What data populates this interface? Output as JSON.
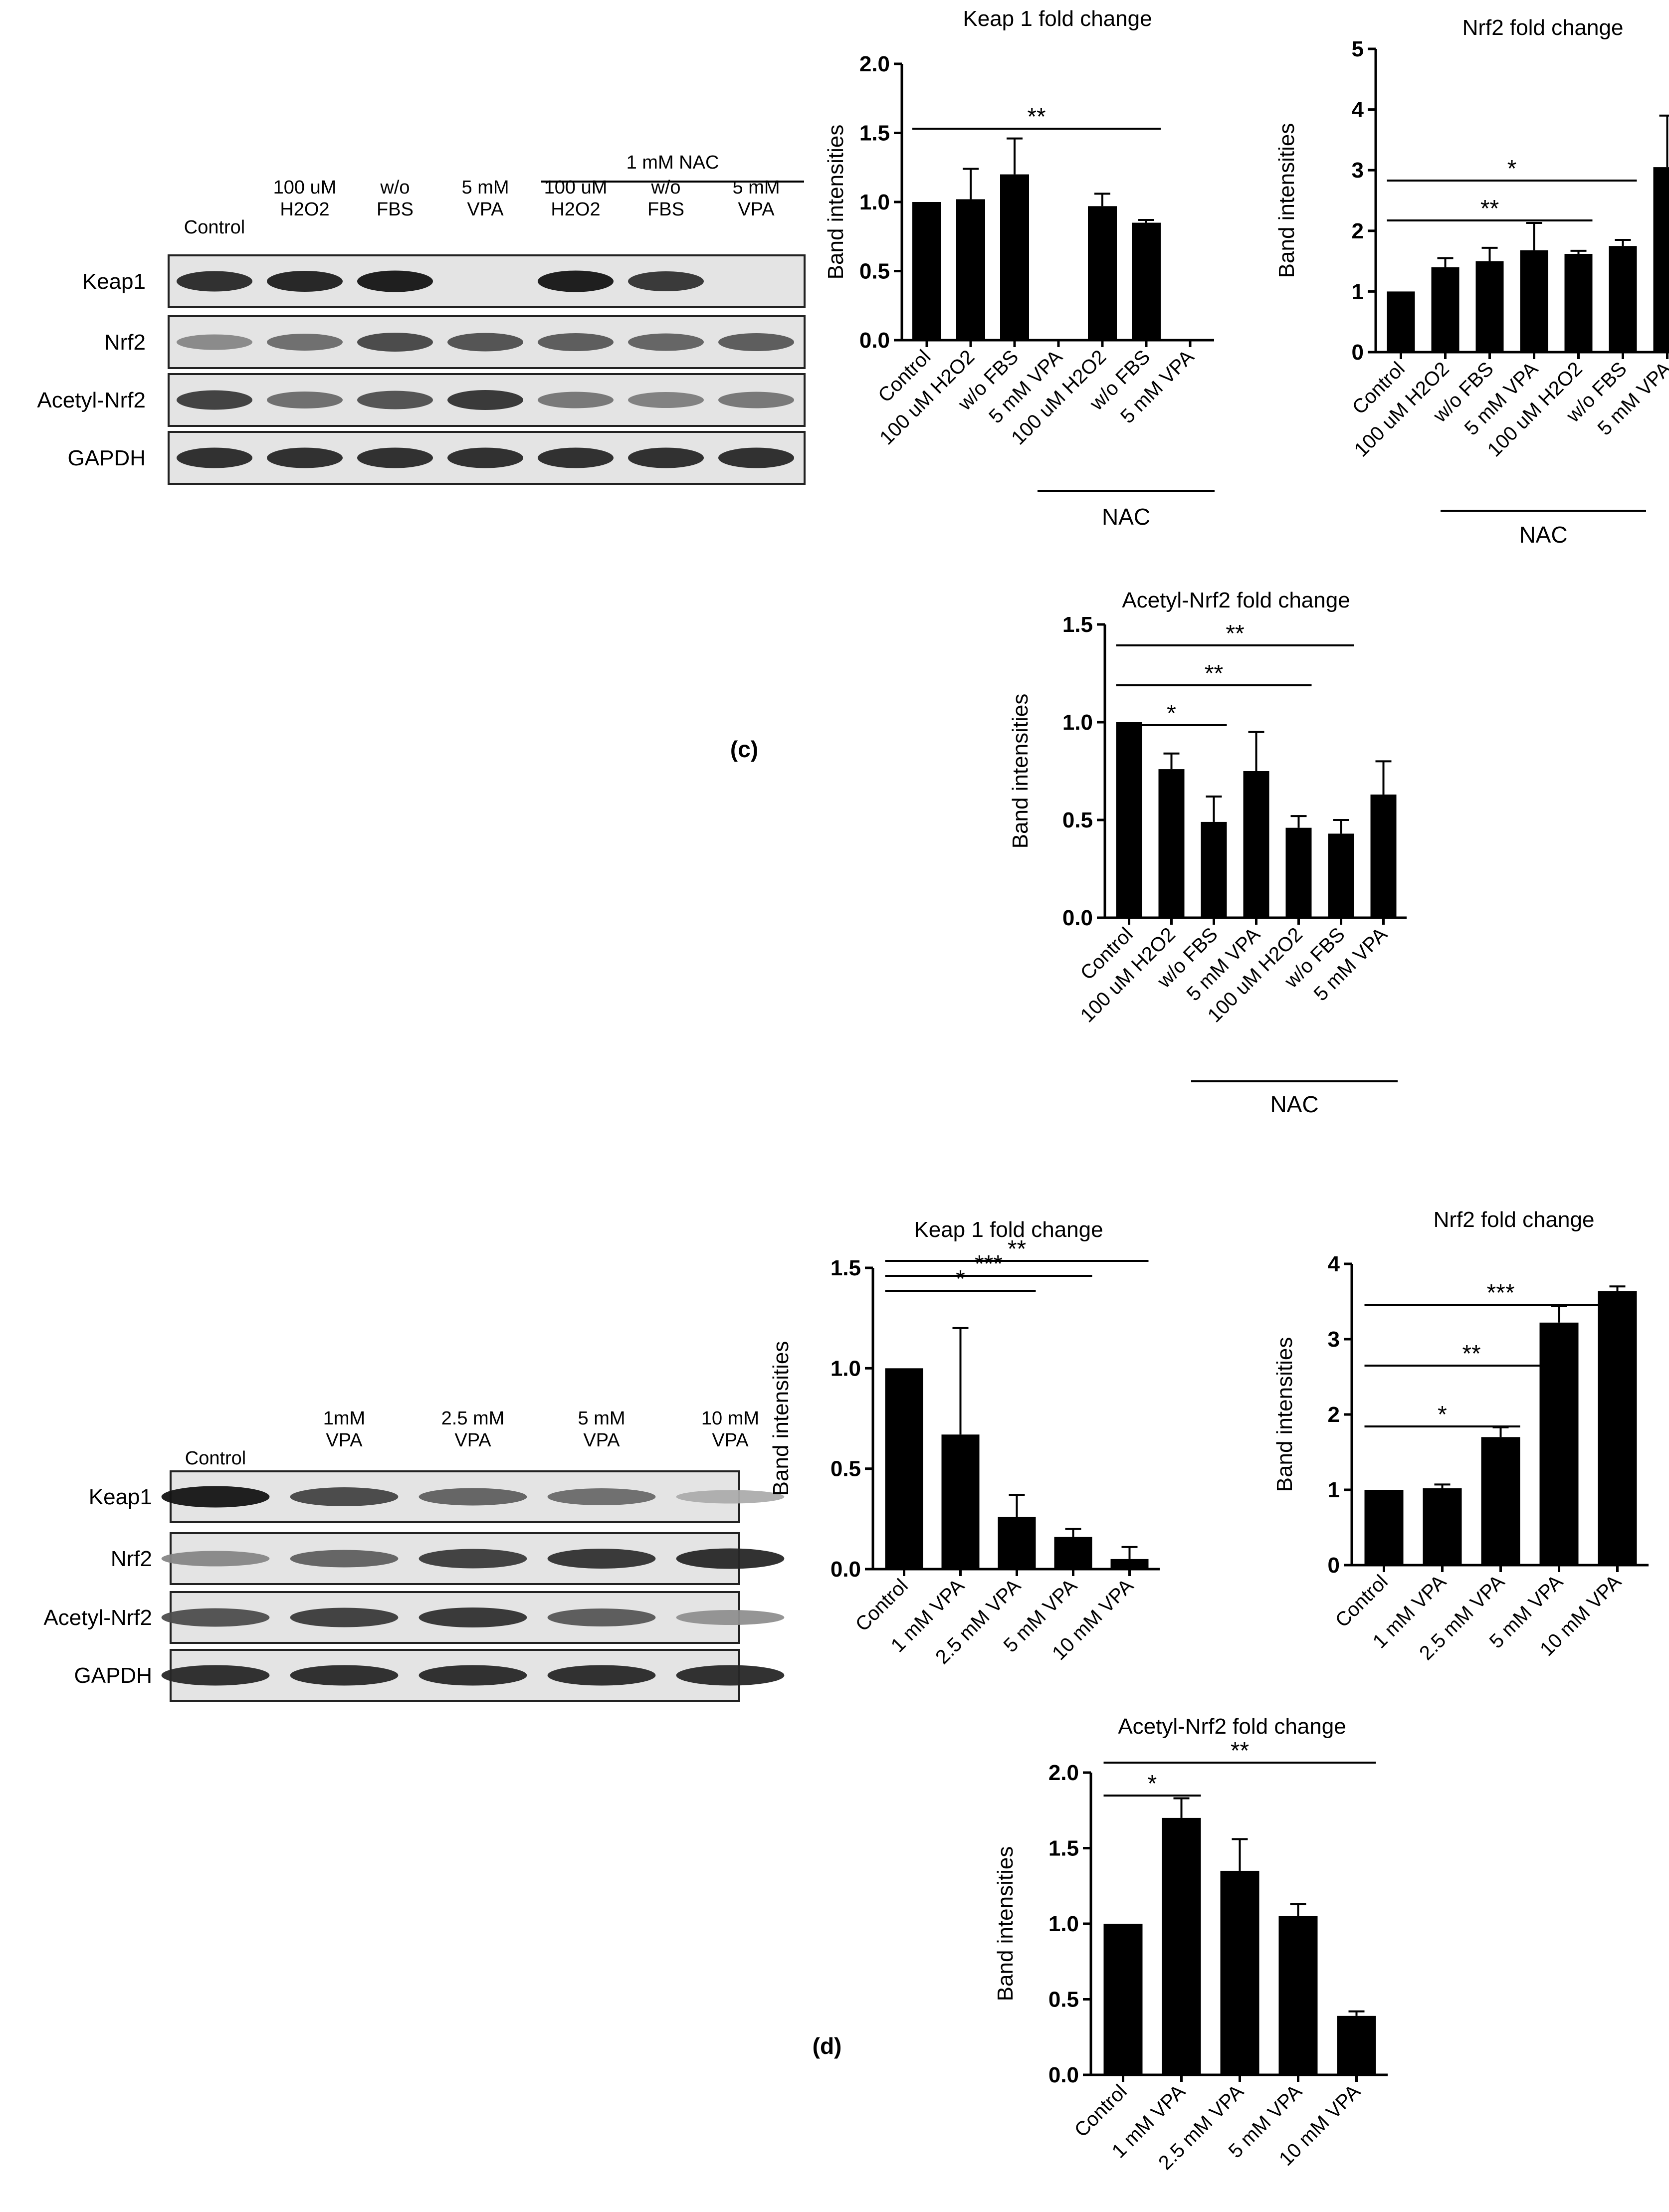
{
  "panels": {
    "c": {
      "label": "(c)"
    },
    "d": {
      "label": "(d)"
    }
  },
  "blots": [
    {
      "id": "blot-c",
      "header": "1 mM NAC",
      "lanes": [
        [
          "Control"
        ],
        [
          "100 uM",
          "H2O2"
        ],
        [
          "w/o",
          "FBS"
        ],
        [
          "5 mM",
          "VPA"
        ],
        [
          "100 uM",
          "H2O2"
        ],
        [
          "w/o",
          "FBS"
        ],
        [
          "5 mM",
          "VPA"
        ]
      ],
      "rows": [
        {
          "name": "Keap1",
          "intensity": [
            0.85,
            0.9,
            0.95,
            0.0,
            0.95,
            0.8,
            0.0
          ]
        },
        {
          "name": "Nrf2",
          "intensity": [
            0.35,
            0.5,
            0.7,
            0.65,
            0.6,
            0.55,
            0.6
          ]
        },
        {
          "name": "Acetyl-Nrf2",
          "intensity": [
            0.75,
            0.5,
            0.65,
            0.8,
            0.45,
            0.4,
            0.45
          ]
        },
        {
          "name": "GAPDH",
          "intensity": [
            0.85,
            0.85,
            0.85,
            0.85,
            0.85,
            0.85,
            0.85
          ]
        }
      ]
    },
    {
      "id": "blot-d",
      "header": "",
      "lanes": [
        [
          "Control"
        ],
        [
          "1mM",
          "VPA"
        ],
        [
          "2.5 mM",
          "VPA"
        ],
        [
          "5 mM",
          "VPA"
        ],
        [
          "10 mM",
          "VPA"
        ]
      ],
      "rows": [
        {
          "name": "Keap1",
          "intensity": [
            0.95,
            0.7,
            0.55,
            0.5,
            0.15
          ]
        },
        {
          "name": "Nrf2",
          "intensity": [
            0.35,
            0.55,
            0.75,
            0.8,
            0.85
          ]
        },
        {
          "name": "Acetyl-Nrf2",
          "intensity": [
            0.65,
            0.75,
            0.8,
            0.6,
            0.3
          ]
        },
        {
          "name": "GAPDH",
          "intensity": [
            0.85,
            0.85,
            0.85,
            0.85,
            0.85
          ]
        }
      ]
    }
  ],
  "chart_data": [
    {
      "id": "c-keap1",
      "type": "bar",
      "title": "Keap 1  fold change",
      "ylabel": "Band intensities",
      "ylim": [
        0,
        2.0
      ],
      "yticks": [
        "0.0",
        "0.5",
        "1.0",
        "1.5",
        "2.0"
      ],
      "categories": [
        "Control",
        "100 uM H2O2",
        "w/o FBS",
        "5 mM VPA",
        "100 uM H2O2",
        "w/o FBS",
        "5 mM VPA"
      ],
      "values": [
        1.0,
        1.02,
        1.2,
        0,
        0.97,
        0.85,
        0
      ],
      "errors": [
        0,
        0.22,
        0.26,
        0,
        0.09,
        0.02,
        0
      ],
      "group_label": "NAC",
      "group_from": 4,
      "group_to": 6,
      "significance": [
        {
          "from": 0,
          "to": 5,
          "label": "**"
        }
      ]
    },
    {
      "id": "c-nrf2",
      "type": "bar",
      "title": "Nrf2 fold change",
      "ylabel": "Band intensities",
      "ylim": [
        0,
        5
      ],
      "yticks": [
        "0",
        "1",
        "2",
        "3",
        "4",
        "5"
      ],
      "categories": [
        "Control",
        "100 uM H2O2",
        "w/o FBS",
        "5 mM VPA",
        "100 uM H2O2",
        "w/o FBS",
        "5 mM VPA"
      ],
      "values": [
        1.0,
        1.4,
        1.5,
        1.68,
        1.62,
        1.75,
        3.05
      ],
      "errors": [
        0,
        0.15,
        0.22,
        0.45,
        0.05,
        0.1,
        0.85
      ],
      "group_label": "NAC",
      "group_from": 4,
      "group_to": 6,
      "significance": [
        {
          "from": 0,
          "to": 4,
          "label": "**"
        },
        {
          "from": 0,
          "to": 5,
          "label": "*"
        }
      ]
    },
    {
      "id": "c-acetyl",
      "type": "bar",
      "title": "Acetyl-Nrf2  fold change",
      "ylabel": "Band intensities",
      "ylim": [
        0,
        1.5
      ],
      "yticks": [
        "0.0",
        "0.5",
        "1.0",
        "1.5"
      ],
      "categories": [
        "Control",
        "100 uM H2O2",
        "w/o FBS",
        "5 mM VPA",
        "100 uM H2O2",
        "w/o FBS",
        "5 mM VPA"
      ],
      "values": [
        1.0,
        0.76,
        0.49,
        0.75,
        0.46,
        0.43,
        0.63
      ],
      "errors": [
        0,
        0.08,
        0.13,
        0.2,
        0.06,
        0.07,
        0.17
      ],
      "group_label": "NAC",
      "group_from": 4,
      "group_to": 6,
      "significance": [
        {
          "from": 0,
          "to": 2,
          "label": "*"
        },
        {
          "from": 0,
          "to": 4,
          "label": "**"
        },
        {
          "from": 0,
          "to": 5,
          "label": "**"
        }
      ]
    },
    {
      "id": "d-keap1",
      "type": "bar",
      "title": "Keap 1  fold change",
      "ylabel": "Band intensities",
      "ylim": [
        0,
        1.5
      ],
      "yticks": [
        "0.0",
        "0.5",
        "1.0",
        "1.5"
      ],
      "categories": [
        "Control",
        "1 mM VPA",
        "2.5 mM VPA",
        "5 mM VPA",
        "10 mM VPA"
      ],
      "values": [
        1.0,
        0.67,
        0.26,
        0.16,
        0.05
      ],
      "errors": [
        0,
        0.53,
        0.11,
        0.04,
        0.06
      ],
      "group_label": "",
      "significance": [
        {
          "from": 0,
          "to": 2,
          "label": "*"
        },
        {
          "from": 0,
          "to": 3,
          "label": "***"
        },
        {
          "from": 0,
          "to": 4,
          "label": "**"
        }
      ]
    },
    {
      "id": "d-nrf2",
      "type": "bar",
      "title": "Nrf2 fold change",
      "ylabel": "Band intensities",
      "ylim": [
        0,
        4
      ],
      "yticks": [
        "0",
        "1",
        "2",
        "3",
        "4"
      ],
      "categories": [
        "Control",
        "1 mM VPA",
        "2.5 mM VPA",
        "5 mM VPA",
        "10 mM VPA"
      ],
      "values": [
        1.0,
        1.02,
        1.7,
        3.22,
        3.64
      ],
      "errors": [
        0,
        0.05,
        0.13,
        0.22,
        0.06
      ],
      "group_label": "",
      "significance": [
        {
          "from": 0,
          "to": 2,
          "label": "*"
        },
        {
          "from": 0,
          "to": 3,
          "label": "**"
        },
        {
          "from": 0,
          "to": 4,
          "label": "***"
        }
      ]
    },
    {
      "id": "d-acetyl",
      "type": "bar",
      "title": "Acetyl-Nrf2  fold change",
      "ylabel": "Band intensities",
      "ylim": [
        0,
        2.0
      ],
      "yticks": [
        "0.0",
        "0.5",
        "1.0",
        "1.5",
        "2.0"
      ],
      "categories": [
        "Control",
        "1 mM VPA",
        "2.5 mM VPA",
        "5 mM VPA",
        "10 mM VPA"
      ],
      "values": [
        1.0,
        1.7,
        1.35,
        1.05,
        0.39
      ],
      "errors": [
        0,
        0.13,
        0.21,
        0.08,
        0.03
      ],
      "group_label": "",
      "significance": [
        {
          "from": 0,
          "to": 1,
          "label": "*"
        },
        {
          "from": 0,
          "to": 4,
          "label": "**"
        }
      ]
    }
  ]
}
